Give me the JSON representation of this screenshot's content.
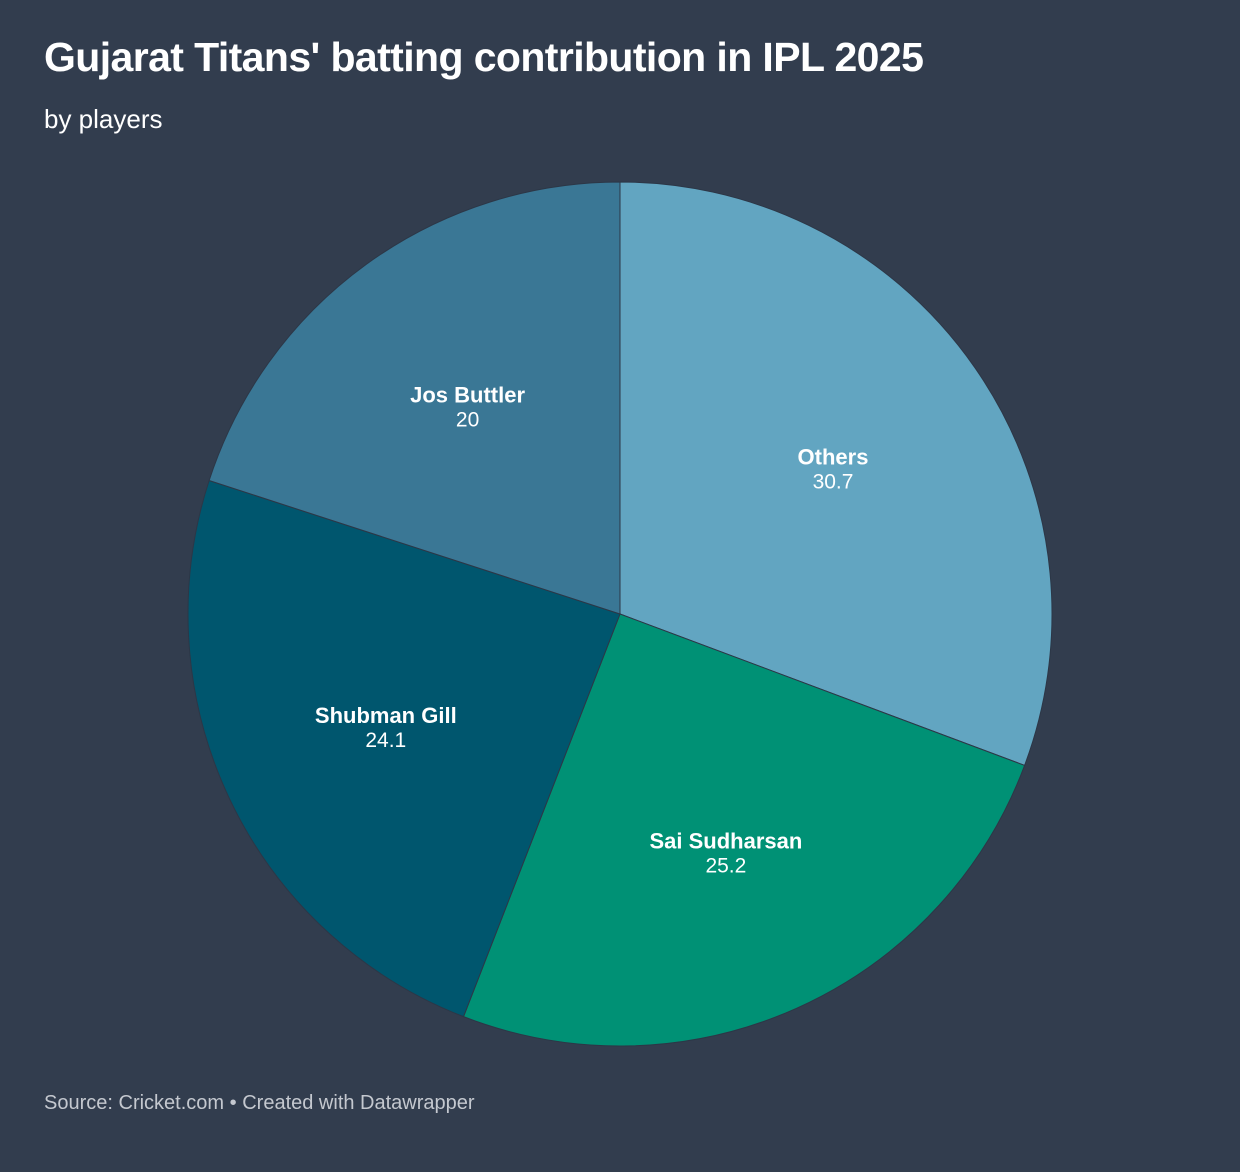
{
  "chart_data": {
    "type": "pie",
    "title": "Gujarat Titans' batting contribution in IPL 2025",
    "subtitle": "by players",
    "slices": [
      {
        "name": "Others",
        "value": 30.7,
        "value_label": "30.7",
        "color": "#62a5c1"
      },
      {
        "name": "Sai Sudharsan",
        "value": 25.2,
        "value_label": "25.2",
        "color": "#009175"
      },
      {
        "name": "Shubman Gill",
        "value": 24.1,
        "value_label": "24.1",
        "color": "#00566e"
      },
      {
        "name": "Jos Buttler",
        "value": 20,
        "value_label": "20",
        "color": "#3a7795"
      }
    ],
    "start_angle": "12 o'clock",
    "direction": "clockwise"
  },
  "footer": {
    "source_prefix": "Source:",
    "source_name": "Cricket.com",
    "separator": "•",
    "credit": "Created with Datawrapper"
  },
  "colors": {
    "background": "#323d4e",
    "slice_border": "#2c3747",
    "text": "#ffffff",
    "footer_text": "#c4c8cf"
  }
}
